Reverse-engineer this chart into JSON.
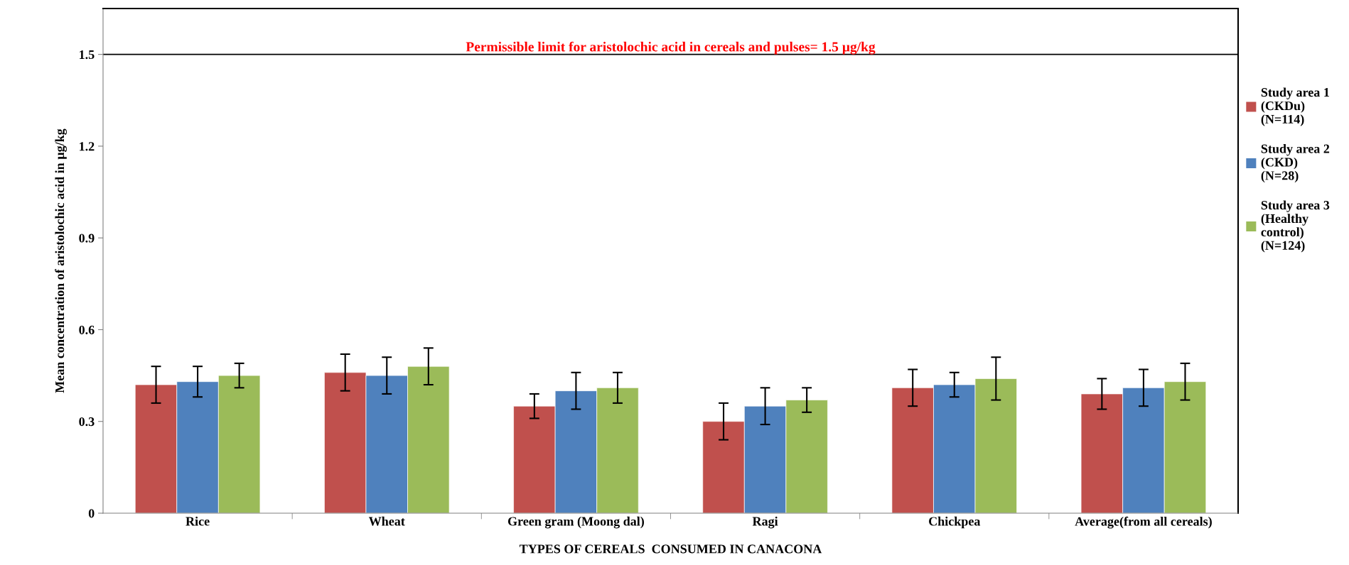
{
  "chart_data": {
    "type": "bar",
    "xlabel": "TYPES OF CEREALS  CONSUMED IN CANACONA",
    "ylabel": "Mean concentration of aristolochic acid in µg/kg",
    "categories": [
      "Rice",
      "Wheat",
      "Green gram (Moong dal)",
      "Ragi",
      "Chickpea",
      "Average(from all cereals)"
    ],
    "series": [
      {
        "name": "Study area 1\n(CKDu)\n(N=114)",
        "color": "#c0504d",
        "values": [
          0.42,
          0.46,
          0.35,
          0.3,
          0.41,
          0.39
        ],
        "errors": [
          0.06,
          0.06,
          0.04,
          0.06,
          0.06,
          0.05
        ]
      },
      {
        "name": "Study area 2\n(CKD)\n(N=28)",
        "color": "#4f81bd",
        "values": [
          0.43,
          0.45,
          0.4,
          0.35,
          0.42,
          0.41
        ],
        "errors": [
          0.05,
          0.06,
          0.06,
          0.06,
          0.04,
          0.06
        ]
      },
      {
        "name": "Study area 3\n(Healthy\ncontrol)\n(N=124)",
        "color": "#9bbb59",
        "values": [
          0.45,
          0.48,
          0.41,
          0.37,
          0.44,
          0.43
        ],
        "errors": [
          0.04,
          0.06,
          0.05,
          0.04,
          0.07,
          0.06
        ]
      }
    ],
    "ylim": [
      0,
      1.65
    ],
    "yticks": [
      0,
      0.3,
      0.6,
      0.9,
      1.2,
      1.5
    ],
    "ref_lines": [
      {
        "axis": "y",
        "value": 1.5,
        "label": "Permissible limit for aristolochic acid in cereals and pulses= 1.5 µg/kg",
        "color": "#000000"
      }
    ],
    "grid": false,
    "legend": "right"
  }
}
